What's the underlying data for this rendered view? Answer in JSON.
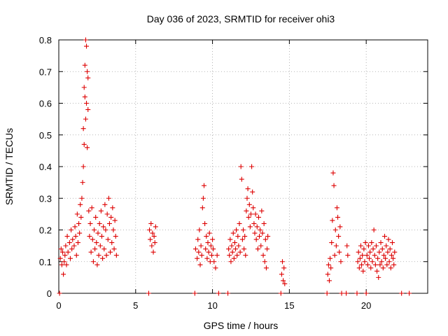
{
  "chart_data": {
    "type": "scatter",
    "title": "Day 036 of 2023, SRMTID for receiver ohi3",
    "xlabel": "GPS time / hours",
    "ylabel": "SRMTID / TECUs",
    "xlim": [
      0,
      24
    ],
    "ylim": [
      0,
      0.8
    ],
    "xticks": [
      0,
      5,
      10,
      15,
      20
    ],
    "yticks": [
      0,
      0.1,
      0.2,
      0.3,
      0.4,
      0.5,
      0.6,
      0.7,
      0.8
    ],
    "xtick_labels": [
      "0",
      "5",
      "10",
      "15",
      "20"
    ],
    "ytick_labels": [
      "0",
      "0.1",
      "0.2",
      "0.3",
      "0.4",
      "0.5",
      "0.6",
      "0.7",
      "0.8"
    ],
    "grid": true,
    "marker": "+",
    "color": "#dd0000",
    "series": [
      {
        "name": "SRMTID",
        "points": [
          [
            0.05,
            0.0
          ],
          [
            0.1,
            0.11
          ],
          [
            0.15,
            0.14
          ],
          [
            0.2,
            0.09
          ],
          [
            0.25,
            0.13
          ],
          [
            0.3,
            0.06
          ],
          [
            0.35,
            0.1
          ],
          [
            0.4,
            0.12
          ],
          [
            0.45,
            0.15
          ],
          [
            0.5,
            0.09
          ],
          [
            0.55,
            0.18
          ],
          [
            0.6,
            0.13
          ],
          [
            0.7,
            0.16
          ],
          [
            0.75,
            0.11
          ],
          [
            0.8,
            0.2
          ],
          [
            0.85,
            0.14
          ],
          [
            0.9,
            0.17
          ],
          [
            1.0,
            0.15
          ],
          [
            1.05,
            0.21
          ],
          [
            1.1,
            0.18
          ],
          [
            1.15,
            0.12
          ],
          [
            1.2,
            0.25
          ],
          [
            1.25,
            0.16
          ],
          [
            1.3,
            0.22
          ],
          [
            1.35,
            0.19
          ],
          [
            1.4,
            0.28
          ],
          [
            1.45,
            0.24
          ],
          [
            1.5,
            0.3
          ],
          [
            1.55,
            0.35
          ],
          [
            1.6,
            0.4
          ],
          [
            1.6,
            0.52
          ],
          [
            1.65,
            0.47
          ],
          [
            1.65,
            0.65
          ],
          [
            1.7,
            0.62
          ],
          [
            1.7,
            0.72
          ],
          [
            1.75,
            0.55
          ],
          [
            1.75,
            0.8
          ],
          [
            1.8,
            0.78
          ],
          [
            1.8,
            0.6
          ],
          [
            1.85,
            0.7
          ],
          [
            1.85,
            0.46
          ],
          [
            1.9,
            0.58
          ],
          [
            1.9,
            0.68
          ],
          [
            1.95,
            0.26
          ],
          [
            2.0,
            0.18
          ],
          [
            2.05,
            0.22
          ],
          [
            2.1,
            0.13
          ],
          [
            2.15,
            0.27
          ],
          [
            2.2,
            0.17
          ],
          [
            2.25,
            0.1
          ],
          [
            2.3,
            0.2
          ],
          [
            2.35,
            0.14
          ],
          [
            2.4,
            0.24
          ],
          [
            2.45,
            0.16
          ],
          [
            2.5,
            0.09
          ],
          [
            2.55,
            0.19
          ],
          [
            2.6,
            0.12
          ],
          [
            2.65,
            0.22
          ],
          [
            2.7,
            0.15
          ],
          [
            2.75,
            0.26
          ],
          [
            2.8,
            0.18
          ],
          [
            2.85,
            0.11
          ],
          [
            2.9,
            0.21
          ],
          [
            2.95,
            0.14
          ],
          [
            3.0,
            0.28
          ],
          [
            3.05,
            0.2
          ],
          [
            3.1,
            0.12
          ],
          [
            3.15,
            0.25
          ],
          [
            3.2,
            0.17
          ],
          [
            3.25,
            0.3
          ],
          [
            3.3,
            0.22
          ],
          [
            3.35,
            0.13
          ],
          [
            3.4,
            0.24
          ],
          [
            3.45,
            0.16
          ],
          [
            3.5,
            0.27
          ],
          [
            3.55,
            0.2
          ],
          [
            3.6,
            0.14
          ],
          [
            3.65,
            0.23
          ],
          [
            3.7,
            0.18
          ],
          [
            3.75,
            0.12
          ],
          [
            5.85,
            0.0
          ],
          [
            5.9,
            0.2
          ],
          [
            5.95,
            0.17
          ],
          [
            6.0,
            0.22
          ],
          [
            6.05,
            0.15
          ],
          [
            6.1,
            0.19
          ],
          [
            6.15,
            0.13
          ],
          [
            6.2,
            0.18
          ],
          [
            6.25,
            0.16
          ],
          [
            6.3,
            0.21
          ],
          [
            8.85,
            0.0
          ],
          [
            8.9,
            0.14
          ],
          [
            9.0,
            0.11
          ],
          [
            9.05,
            0.17
          ],
          [
            9.1,
            0.13
          ],
          [
            9.15,
            0.2
          ],
          [
            9.2,
            0.09
          ],
          [
            9.25,
            0.15
          ],
          [
            9.3,
            0.12
          ],
          [
            9.35,
            0.27
          ],
          [
            9.4,
            0.3
          ],
          [
            9.45,
            0.34
          ],
          [
            9.5,
            0.22
          ],
          [
            9.55,
            0.14
          ],
          [
            9.6,
            0.18
          ],
          [
            9.65,
            0.11
          ],
          [
            9.7,
            0.16
          ],
          [
            9.75,
            0.13
          ],
          [
            9.8,
            0.19
          ],
          [
            9.85,
            0.1
          ],
          [
            9.9,
            0.15
          ],
          [
            9.95,
            0.12
          ],
          [
            10.0,
            0.17
          ],
          [
            10.05,
            0.14
          ],
          [
            10.1,
            0.1
          ],
          [
            10.2,
            0.08
          ],
          [
            10.3,
            0.12
          ],
          [
            10.4,
            0.0
          ],
          [
            11.0,
            0.0
          ],
          [
            11.05,
            0.14
          ],
          [
            11.1,
            0.12
          ],
          [
            11.15,
            0.17
          ],
          [
            11.2,
            0.1
          ],
          [
            11.25,
            0.15
          ],
          [
            11.3,
            0.13
          ],
          [
            11.35,
            0.19
          ],
          [
            11.4,
            0.11
          ],
          [
            11.45,
            0.16
          ],
          [
            11.5,
            0.14
          ],
          [
            11.55,
            0.2
          ],
          [
            11.6,
            0.12
          ],
          [
            11.65,
            0.18
          ],
          [
            11.7,
            0.15
          ],
          [
            11.75,
            0.22
          ],
          [
            11.8,
            0.13
          ],
          [
            11.85,
            0.4
          ],
          [
            11.9,
            0.36
          ],
          [
            11.95,
            0.17
          ],
          [
            12.0,
            0.2
          ],
          [
            12.05,
            0.14
          ],
          [
            12.1,
            0.18
          ],
          [
            12.15,
            0.12
          ],
          [
            12.2,
            0.26
          ],
          [
            12.25,
            0.3
          ],
          [
            12.3,
            0.33
          ],
          [
            12.35,
            0.24
          ],
          [
            12.4,
            0.28
          ],
          [
            12.45,
            0.21
          ],
          [
            12.5,
            0.25
          ],
          [
            12.55,
            0.4
          ],
          [
            12.6,
            0.32
          ],
          [
            12.65,
            0.27
          ],
          [
            12.7,
            0.22
          ],
          [
            12.75,
            0.19
          ],
          [
            12.8,
            0.25
          ],
          [
            12.85,
            0.17
          ],
          [
            12.9,
            0.21
          ],
          [
            12.95,
            0.14
          ],
          [
            13.0,
            0.24
          ],
          [
            13.05,
            0.18
          ],
          [
            13.1,
            0.2
          ],
          [
            13.15,
            0.15
          ],
          [
            13.2,
            0.26
          ],
          [
            13.25,
            0.19
          ],
          [
            13.3,
            0.12
          ],
          [
            13.35,
            0.22
          ],
          [
            13.4,
            0.1
          ],
          [
            13.45,
            0.17
          ],
          [
            13.5,
            0.08
          ],
          [
            13.55,
            0.14
          ],
          [
            13.6,
            0.18
          ],
          [
            14.45,
            0.0
          ],
          [
            14.5,
            0.06
          ],
          [
            14.55,
            0.1
          ],
          [
            14.6,
            0.04
          ],
          [
            14.65,
            0.08
          ],
          [
            14.7,
            0.03
          ],
          [
            17.45,
            0.0
          ],
          [
            17.5,
            0.06
          ],
          [
            17.55,
            0.09
          ],
          [
            17.6,
            0.04
          ],
          [
            17.65,
            0.11
          ],
          [
            17.7,
            0.08
          ],
          [
            17.75,
            0.16
          ],
          [
            17.8,
            0.23
          ],
          [
            17.85,
            0.38
          ],
          [
            17.9,
            0.34
          ],
          [
            17.95,
            0.12
          ],
          [
            18.0,
            0.2
          ],
          [
            18.05,
            0.15
          ],
          [
            18.1,
            0.27
          ],
          [
            18.15,
            0.24
          ],
          [
            18.2,
            0.18
          ],
          [
            18.25,
            0.13
          ],
          [
            18.3,
            0.21
          ],
          [
            18.35,
            0.1
          ],
          [
            18.4,
            0.0
          ],
          [
            18.7,
            0.0
          ],
          [
            18.75,
            0.15
          ],
          [
            18.8,
            0.12
          ],
          [
            19.4,
            0.0
          ],
          [
            19.45,
            0.1
          ],
          [
            19.5,
            0.13
          ],
          [
            19.55,
            0.08
          ],
          [
            19.6,
            0.11
          ],
          [
            19.65,
            0.15
          ],
          [
            19.7,
            0.09
          ],
          [
            19.75,
            0.12
          ],
          [
            19.8,
            0.07
          ],
          [
            19.85,
            0.14
          ],
          [
            19.9,
            0.1
          ],
          [
            19.95,
            0.16
          ],
          [
            20.0,
            0.0
          ],
          [
            20.05,
            0.12
          ],
          [
            20.1,
            0.09
          ],
          [
            20.15,
            0.15
          ],
          [
            20.2,
            0.11
          ],
          [
            20.25,
            0.13
          ],
          [
            20.3,
            0.08
          ],
          [
            20.35,
            0.16
          ],
          [
            20.4,
            0.1
          ],
          [
            20.45,
            0.14
          ],
          [
            20.5,
            0.2
          ],
          [
            20.55,
            0.12
          ],
          [
            20.6,
            0.09
          ],
          [
            20.65,
            0.15
          ],
          [
            20.7,
            0.07
          ],
          [
            20.75,
            0.11
          ],
          [
            20.8,
            0.05
          ],
          [
            20.85,
            0.13
          ],
          [
            20.9,
            0.09
          ],
          [
            20.95,
            0.16
          ],
          [
            21.0,
            0.1
          ],
          [
            21.05,
            0.14
          ],
          [
            21.1,
            0.08
          ],
          [
            21.15,
            0.12
          ],
          [
            21.2,
            0.18
          ],
          [
            21.25,
            0.11
          ],
          [
            21.3,
            0.15
          ],
          [
            21.35,
            0.09
          ],
          [
            21.4,
            0.13
          ],
          [
            21.45,
            0.17
          ],
          [
            21.5,
            0.1
          ],
          [
            21.55,
            0.14
          ],
          [
            21.6,
            0.08
          ],
          [
            21.65,
            0.12
          ],
          [
            21.7,
            0.16
          ],
          [
            21.75,
            0.11
          ],
          [
            21.8,
            0.09
          ],
          [
            21.85,
            0.13
          ],
          [
            22.3,
            0.0
          ],
          [
            22.8,
            0.0
          ]
        ]
      }
    ]
  }
}
